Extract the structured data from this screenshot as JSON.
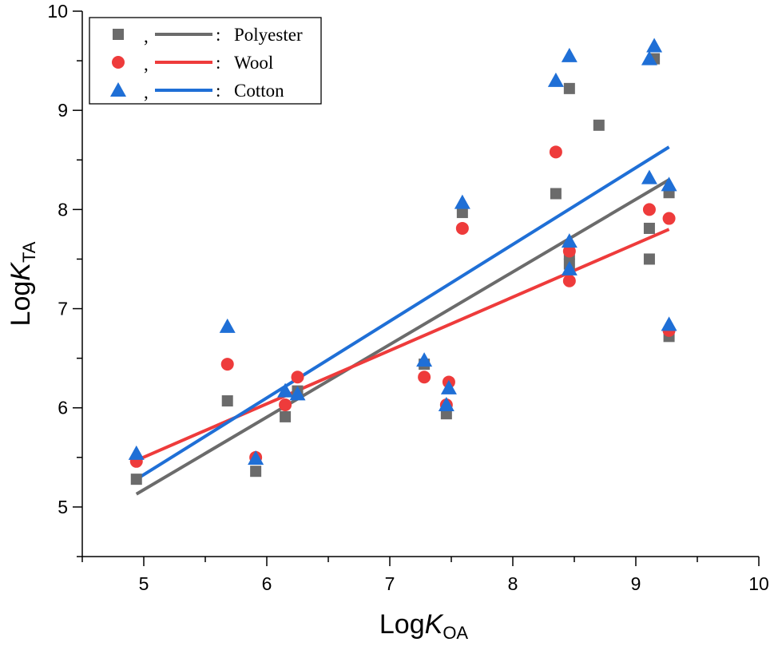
{
  "chart_data": {
    "type": "scatter",
    "xlabel": {
      "main": "Log",
      "var": "K",
      "sub": "OA"
    },
    "ylabel": {
      "main": "Log",
      "var": "K",
      "sub": "TA"
    },
    "xlim": [
      4.5,
      10
    ],
    "ylim": [
      4.5,
      10
    ],
    "x_ticks": [
      "5",
      "6",
      "7",
      "8",
      "9",
      "10"
    ],
    "y_ticks": [
      "5",
      "6",
      "7",
      "8",
      "9",
      "10"
    ],
    "grid": false,
    "legend_position": "top-left",
    "legend_separator": ",",
    "legend_colon": ":",
    "series": [
      {
        "name": "Polyester",
        "marker": "square",
        "color": "#6b6b6b",
        "line_color": "#6b6b6b",
        "points": [
          [
            4.94,
            5.28
          ],
          [
            5.68,
            6.07
          ],
          [
            5.91,
            5.36
          ],
          [
            6.15,
            5.91
          ],
          [
            6.25,
            6.17
          ],
          [
            7.28,
            6.44
          ],
          [
            7.46,
            5.94
          ],
          [
            7.59,
            7.97
          ],
          [
            8.35,
            8.16
          ],
          [
            8.46,
            9.22
          ],
          [
            8.46,
            7.45
          ],
          [
            8.46,
            7.55
          ],
          [
            8.7,
            8.85
          ],
          [
            9.11,
            7.81
          ],
          [
            9.11,
            7.5
          ],
          [
            9.15,
            9.52
          ],
          [
            9.27,
            8.17
          ],
          [
            9.27,
            6.72
          ]
        ],
        "fit": [
          [
            4.94,
            5.13
          ],
          [
            9.27,
            8.3
          ]
        ]
      },
      {
        "name": "Wool",
        "marker": "circle",
        "color": "#ee3b3b",
        "line_color": "#ee3b3b",
        "points": [
          [
            4.94,
            5.46
          ],
          [
            5.68,
            6.44
          ],
          [
            5.91,
            5.5
          ],
          [
            6.15,
            6.03
          ],
          [
            6.25,
            6.31
          ],
          [
            7.28,
            6.31
          ],
          [
            7.46,
            6.03
          ],
          [
            7.48,
            6.26
          ],
          [
            7.59,
            7.81
          ],
          [
            8.35,
            8.58
          ],
          [
            8.46,
            7.58
          ],
          [
            8.46,
            7.28
          ],
          [
            9.11,
            8.0
          ],
          [
            9.27,
            7.91
          ],
          [
            9.27,
            6.78
          ]
        ],
        "fit": [
          [
            4.94,
            5.47
          ],
          [
            9.27,
            7.8
          ]
        ]
      },
      {
        "name": "Cotton",
        "marker": "triangle",
        "color": "#1f6fd6",
        "line_color": "#1f6fd6",
        "points": [
          [
            4.94,
            5.54
          ],
          [
            5.68,
            6.82
          ],
          [
            5.91,
            5.49
          ],
          [
            6.15,
            6.17
          ],
          [
            6.25,
            6.14
          ],
          [
            7.28,
            6.48
          ],
          [
            7.46,
            6.03
          ],
          [
            7.48,
            6.2
          ],
          [
            7.59,
            8.07
          ],
          [
            8.35,
            9.3
          ],
          [
            8.46,
            9.55
          ],
          [
            8.46,
            7.68
          ],
          [
            8.46,
            7.4
          ],
          [
            9.11,
            8.32
          ],
          [
            9.11,
            9.52
          ],
          [
            9.15,
            9.65
          ],
          [
            9.27,
            8.25
          ],
          [
            9.27,
            6.84
          ]
        ],
        "fit": [
          [
            4.94,
            5.28
          ],
          [
            9.27,
            8.63
          ]
        ]
      }
    ]
  }
}
